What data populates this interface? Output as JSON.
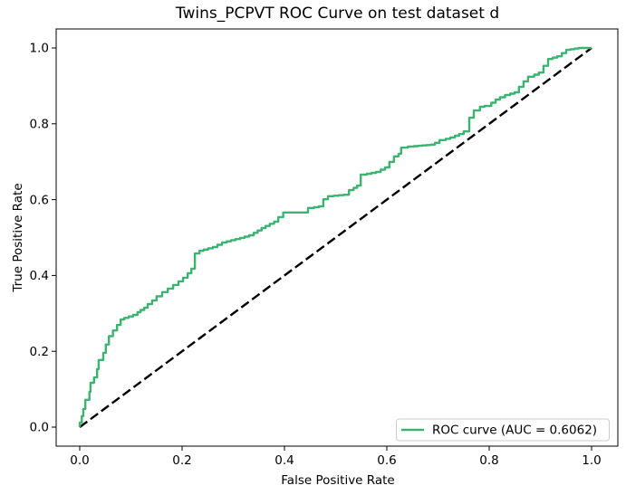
{
  "chart_data": {
    "type": "line",
    "title": "Twins_PCPVT ROC Curve on test dataset d",
    "xlabel": "False Positive Rate",
    "ylabel": "True Positive Rate",
    "xlim": [
      -0.05,
      1.05
    ],
    "ylim": [
      -0.05,
      1.05
    ],
    "x_tick_labels": [
      "0.0",
      "0.2",
      "0.4",
      "0.6",
      "0.8",
      "1.0"
    ],
    "y_tick_labels": [
      "0.0",
      "0.2",
      "0.4",
      "0.6",
      "0.8",
      "1.0"
    ],
    "x_tick_values": [
      0.0,
      0.2,
      0.4,
      0.6,
      0.8,
      1.0
    ],
    "y_tick_values": [
      0.0,
      0.2,
      0.4,
      0.6,
      0.8,
      1.0
    ],
    "grid": false,
    "legend_position": "lower right",
    "auc": 0.6062,
    "series": [
      {
        "name": "ROC curve (AUC = 0.6062)",
        "render": "step",
        "color": "#3cb371",
        "line_style": "solid",
        "x": [
          0.0,
          0.004,
          0.007,
          0.011,
          0.019,
          0.021,
          0.028,
          0.034,
          0.037,
          0.046,
          0.051,
          0.057,
          0.065,
          0.073,
          0.087,
          0.113,
          0.119,
          0.133,
          0.15,
          0.172,
          0.193,
          0.211,
          0.225,
          0.234,
          0.242,
          0.269,
          0.287,
          0.322,
          0.34,
          0.363,
          0.388,
          0.407,
          0.446,
          0.458,
          0.476,
          0.485,
          0.496,
          0.526,
          0.535,
          0.549,
          0.561,
          0.588,
          0.605,
          0.623,
          0.628,
          0.641,
          0.653,
          0.694,
          0.703,
          0.715,
          0.733,
          0.75,
          0.761,
          0.77,
          0.782,
          0.791,
          0.804,
          0.821,
          0.841,
          0.858,
          0.876,
          0.888,
          0.906,
          0.924,
          0.942,
          0.959,
          0.982,
          1.0
        ],
        "y": [
          0.0,
          0.012,
          0.029,
          0.048,
          0.072,
          0.093,
          0.117,
          0.131,
          0.153,
          0.177,
          0.196,
          0.218,
          0.24,
          0.255,
          0.284,
          0.296,
          0.303,
          0.315,
          0.334,
          0.356,
          0.375,
          0.394,
          0.418,
          0.458,
          0.465,
          0.475,
          0.487,
          0.499,
          0.506,
          0.525,
          0.542,
          0.566,
          0.566,
          0.578,
          0.582,
          0.601,
          0.609,
          0.613,
          0.625,
          0.637,
          0.666,
          0.673,
          0.685,
          0.714,
          0.721,
          0.737,
          0.74,
          0.745,
          0.75,
          0.757,
          0.764,
          0.773,
          0.78,
          0.816,
          0.835,
          0.845,
          0.847,
          0.864,
          0.876,
          0.883,
          0.912,
          0.924,
          0.935,
          0.971,
          0.978,
          0.995,
          1.0,
          1.0
        ]
      },
      {
        "name": "chance diagonal",
        "render": "line",
        "color": "#000000",
        "line_style": "dashed",
        "x": [
          0.0,
          1.0
        ],
        "y": [
          0.0,
          1.0
        ]
      }
    ],
    "legend": {
      "entries": [
        {
          "label": "ROC curve (AUC = 0.6062)",
          "color": "#3cb371"
        }
      ]
    }
  }
}
